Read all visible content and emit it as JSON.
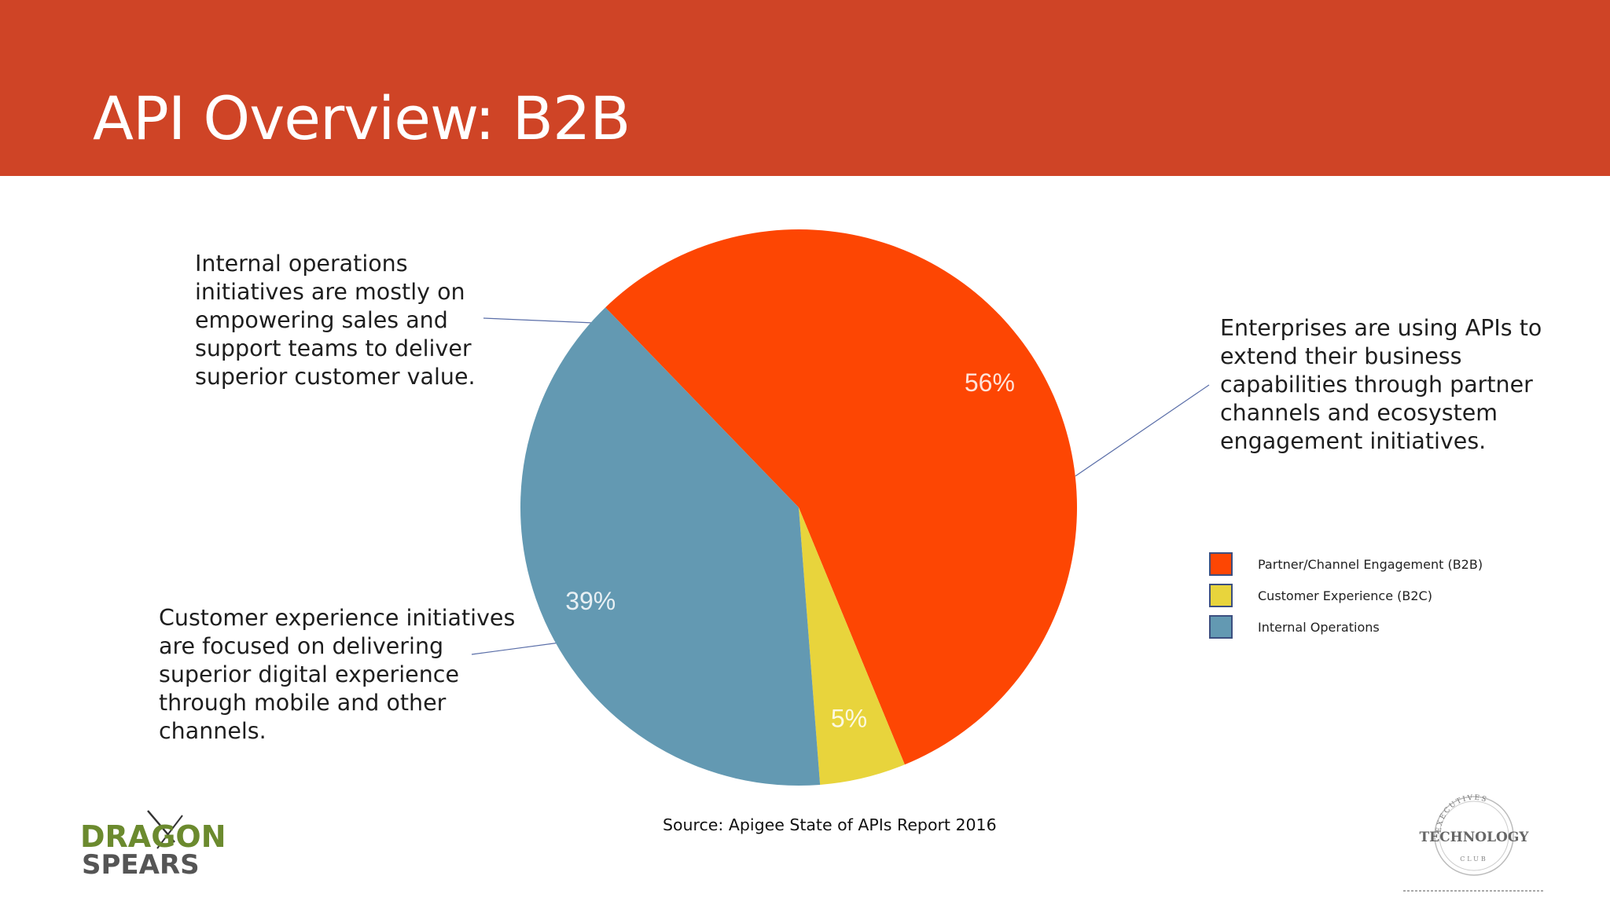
{
  "slide": {
    "title": "API Overview: B2B",
    "source": "Source: Apigee State of APIs Report 2016",
    "header_color": "#cf4426"
  },
  "annotations": {
    "internal": "Internal operations initiatives are mostly on empowering sales and support teams to deliver superior customer value.",
    "b2b": "Enterprises are using APIs to extend their business capabilities through partner channels and ecosystem engagement initiatives.",
    "b2c": "Customer experience initiatives are focused on delivering superior digital experience through mobile and other channels."
  },
  "chart_data": {
    "type": "pie",
    "categories": [
      "Partner/Channel Engagement (B2B)",
      "Customer Experience (B2C)",
      "Internal Operations"
    ],
    "values": [
      56,
      5,
      39
    ],
    "labels": [
      "56%",
      "5%",
      "39%"
    ],
    "colors": [
      "#fd4603",
      "#e8d43c",
      "#6399b2"
    ],
    "legend_position": "right"
  },
  "logos": {
    "dragon_spears": {
      "line1": "DRAGON",
      "line2": "SPEARS"
    },
    "technology_club": {
      "arc": "EXECUTIVES",
      "word": "TECHNOLOGY",
      "bottom": "CLUB"
    }
  }
}
